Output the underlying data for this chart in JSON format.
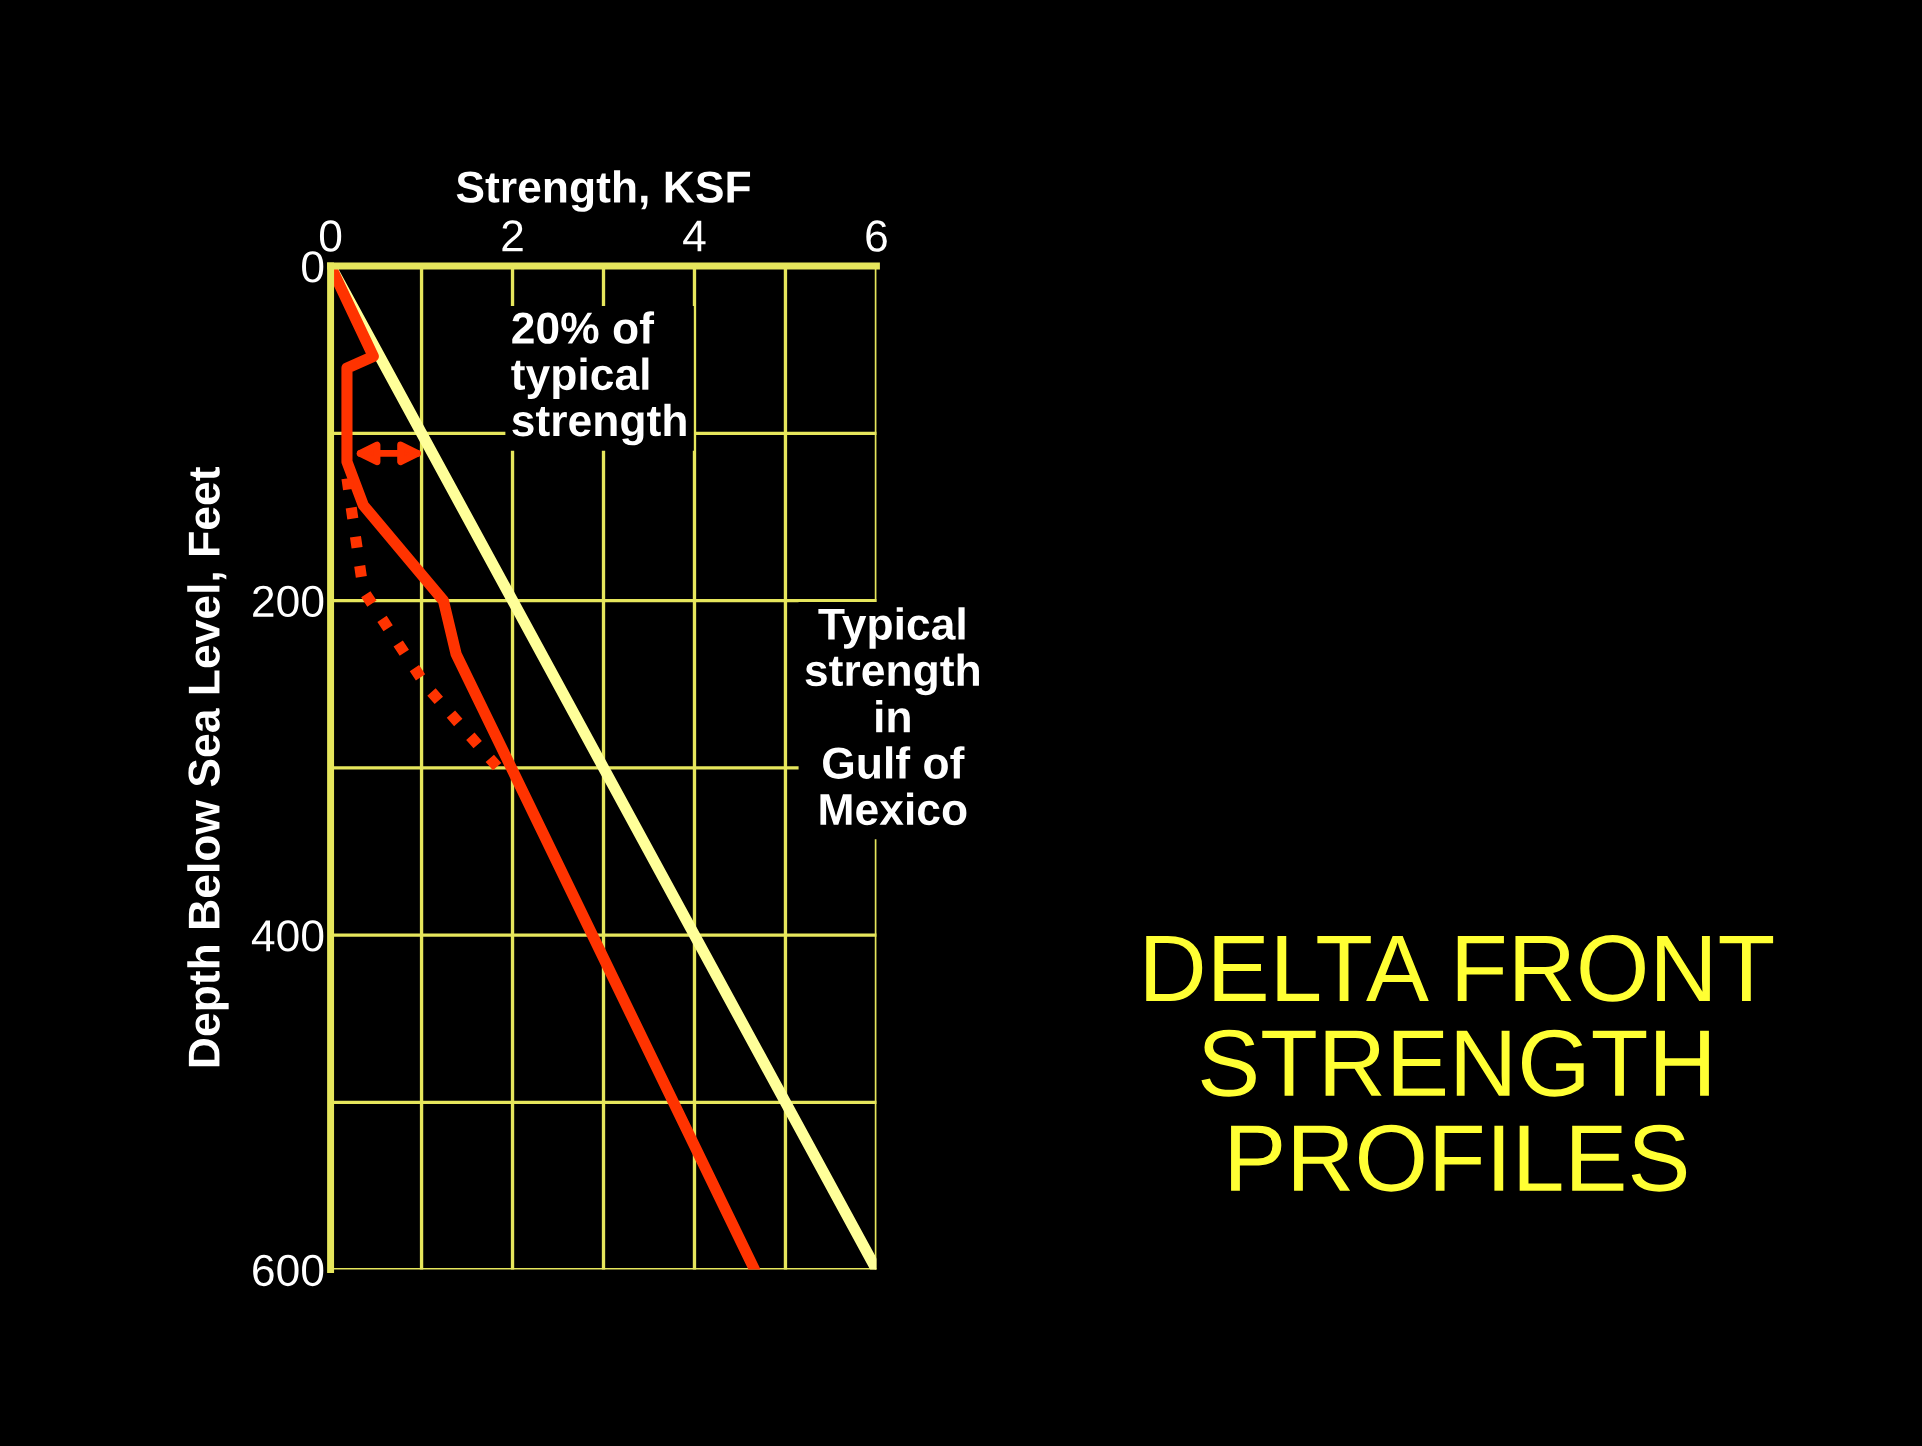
{
  "chart_data": {
    "type": "line",
    "title": "DELTA FRONT\nSTRENGTH\nPROFILES",
    "xlabel": "Strength, KSF",
    "ylabel": "Depth Below Sea Level, Feet",
    "annotations": [
      {
        "text": "20% of\ntypical\nstrength",
        "x": 1.1,
        "y": 112
      },
      "Typical\nstrength\nin\nGulf of\nMexico"
    ],
    "series": [
      {
        "color": "#ffff99",
        "x": [
          0,
          6
        ],
        "values": [
          0,
          600
        ],
        "line_style": "solid"
      },
      {
        "color": "#ff3300",
        "x": [
          0,
          0.47,
          0.18,
          0.18,
          0.36,
          1.24,
          1.38,
          1.96,
          4.66
        ],
        "values": [
          0,
          54,
          61,
          117,
          143,
          200,
          232,
          297,
          600
        ],
        "line_style": "solid"
      },
      {
        "color": "#ff3300",
        "x": [
          0.18,
          0.36,
          1.05,
          1.89
        ],
        "values": [
          127,
          194,
          251,
          303
        ],
        "line_style": "dotted"
      }
    ],
    "xlim": [
      0,
      6
    ],
    "ylim": [
      600,
      0
    ],
    "xticks": [
      0,
      {
        "value": 1,
        "label": null
      },
      2,
      {
        "value": 3,
        "label": null
      },
      4,
      {
        "value": 5,
        "label": null
      },
      6
    ],
    "yticks": [
      0,
      {
        "value": 100,
        "label": null
      },
      200,
      {
        "value": 300,
        "label": null
      },
      400,
      {
        "value": 500,
        "label": null
      },
      600
    ],
    "grid": true,
    "legend": false
  }
}
